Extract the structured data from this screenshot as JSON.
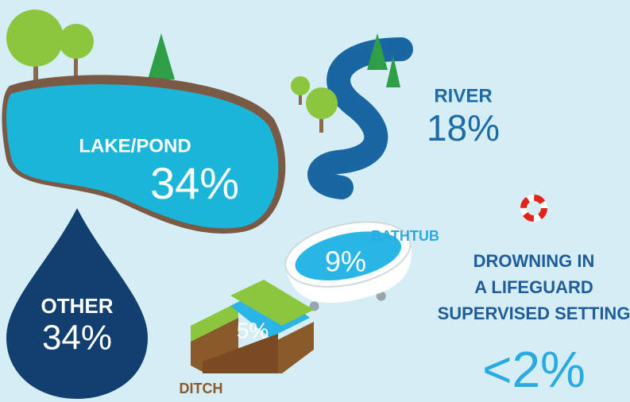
{
  "items": [
    {
      "label": "LAKE/POND",
      "value": "34%"
    },
    {
      "label": "RIVER",
      "value": "18%"
    },
    {
      "label": "BATHTUB",
      "value": "9%"
    },
    {
      "label": "DITCH",
      "value": "5%"
    },
    {
      "label": "OTHER",
      "value": "34%"
    }
  ],
  "lifeguard": {
    "lines": [
      "DROWNING IN",
      "A LIFEGUARD",
      "SUPERVISED SETTING"
    ],
    "value": "<2%"
  }
}
